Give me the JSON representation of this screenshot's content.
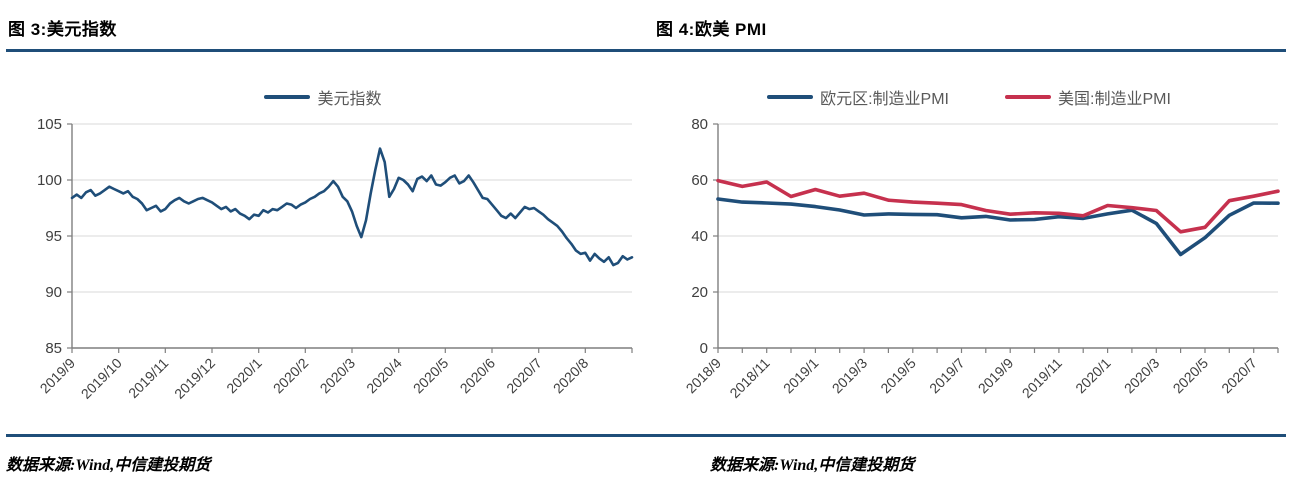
{
  "header": {
    "left_title": "图 3:美元指数",
    "right_title": "图 4:欧美 PMI"
  },
  "footer": {
    "left_source": "数据来源:Wind,中信建投期货",
    "right_source": "数据来源:Wind,中信建投期货"
  },
  "colors": {
    "rule": "#1F4E79",
    "grid": "#D9D9D9",
    "axis": "#7F7F7F",
    "tick_text": "#404040",
    "legend_text": "#595959",
    "usd_line": "#1F4E79",
    "euro_pmi_line": "#1F4E79",
    "us_pmi_line": "#C6314E"
  },
  "chart_data": [
    {
      "type": "line",
      "title": "美元指数",
      "xlabel": "",
      "ylabel": "",
      "ylim": [
        85,
        105
      ],
      "yticks": [
        85,
        90,
        95,
        100,
        105
      ],
      "grid": "horizontal",
      "legend_position": "top-center",
      "x_categories": [
        "2019/9",
        "2019/10",
        "2019/11",
        "2019/12",
        "2020/1",
        "2020/2",
        "2020/3",
        "2020/4",
        "2020/5",
        "2020/6",
        "2020/7",
        "2020/8"
      ],
      "points_per_category": 10,
      "label_every": 1,
      "series": [
        {
          "name": "美元指数",
          "color": "#1F4E79",
          "stroke_width": 2.6,
          "values": [
            98.4,
            98.7,
            98.4,
            98.9,
            99.1,
            98.6,
            98.8,
            99.1,
            99.4,
            99.2,
            99.0,
            98.8,
            99.0,
            98.5,
            98.3,
            97.9,
            97.3,
            97.5,
            97.7,
            97.2,
            97.4,
            97.9,
            98.2,
            98.4,
            98.1,
            97.9,
            98.1,
            98.3,
            98.4,
            98.2,
            98.0,
            97.7,
            97.4,
            97.6,
            97.2,
            97.4,
            97.0,
            96.8,
            96.5,
            96.9,
            96.8,
            97.3,
            97.1,
            97.4,
            97.3,
            97.6,
            97.9,
            97.8,
            97.5,
            97.8,
            98.0,
            98.3,
            98.5,
            98.8,
            99.0,
            99.4,
            99.9,
            99.4,
            98.5,
            98.1,
            97.2,
            95.9,
            94.9,
            96.4,
            98.8,
            100.9,
            102.8,
            101.6,
            98.5,
            99.2,
            100.2,
            100.0,
            99.6,
            99.0,
            100.1,
            100.3,
            99.9,
            100.4,
            99.6,
            99.5,
            99.8,
            100.2,
            100.4,
            99.7,
            99.9,
            100.4,
            99.8,
            99.1,
            98.4,
            98.3,
            97.8,
            97.3,
            96.8,
            96.6,
            97.0,
            96.6,
            97.1,
            97.6,
            97.4,
            97.5,
            97.2,
            96.9,
            96.5,
            96.2,
            95.9,
            95.4,
            94.8,
            94.3,
            93.7,
            93.4,
            93.5,
            92.8,
            93.4,
            93.0,
            92.7,
            93.1,
            92.4,
            92.6,
            93.2,
            92.9,
            93.1
          ]
        }
      ]
    },
    {
      "type": "line",
      "title": "欧美 PMI",
      "xlabel": "",
      "ylabel": "",
      "ylim": [
        0,
        80
      ],
      "yticks": [
        0,
        20,
        40,
        60,
        80
      ],
      "grid": "horizontal",
      "legend_position": "top-center",
      "x_categories": [
        "2018/9",
        "2018/10",
        "2018/11",
        "2018/12",
        "2019/1",
        "2019/2",
        "2019/3",
        "2019/4",
        "2019/5",
        "2019/6",
        "2019/7",
        "2019/8",
        "2019/9",
        "2019/10",
        "2019/11",
        "2019/12",
        "2020/1",
        "2020/2",
        "2020/3",
        "2020/4",
        "2020/5",
        "2020/6",
        "2020/7",
        "2020/8"
      ],
      "points_per_category": 1,
      "label_every": 2,
      "series": [
        {
          "name": "欧元区:制造业PMI",
          "color": "#1F4E79",
          "stroke_width": 3.6,
          "values": [
            53.2,
            52.1,
            51.8,
            51.4,
            50.5,
            49.3,
            47.5,
            47.9,
            47.7,
            47.6,
            46.5,
            47.0,
            45.7,
            45.9,
            46.9,
            46.3,
            47.9,
            49.2,
            44.5,
            33.4,
            39.4,
            47.4,
            51.8,
            51.7
          ]
        },
        {
          "name": "美国:制造业PMI",
          "color": "#C6314E",
          "stroke_width": 3.6,
          "values": [
            59.8,
            57.7,
            59.3,
            54.1,
            56.6,
            54.2,
            55.3,
            52.8,
            52.1,
            51.7,
            51.2,
            49.1,
            47.8,
            48.3,
            48.1,
            47.2,
            50.9,
            50.1,
            49.1,
            41.5,
            43.1,
            52.6,
            54.2,
            56.0
          ]
        }
      ]
    }
  ]
}
